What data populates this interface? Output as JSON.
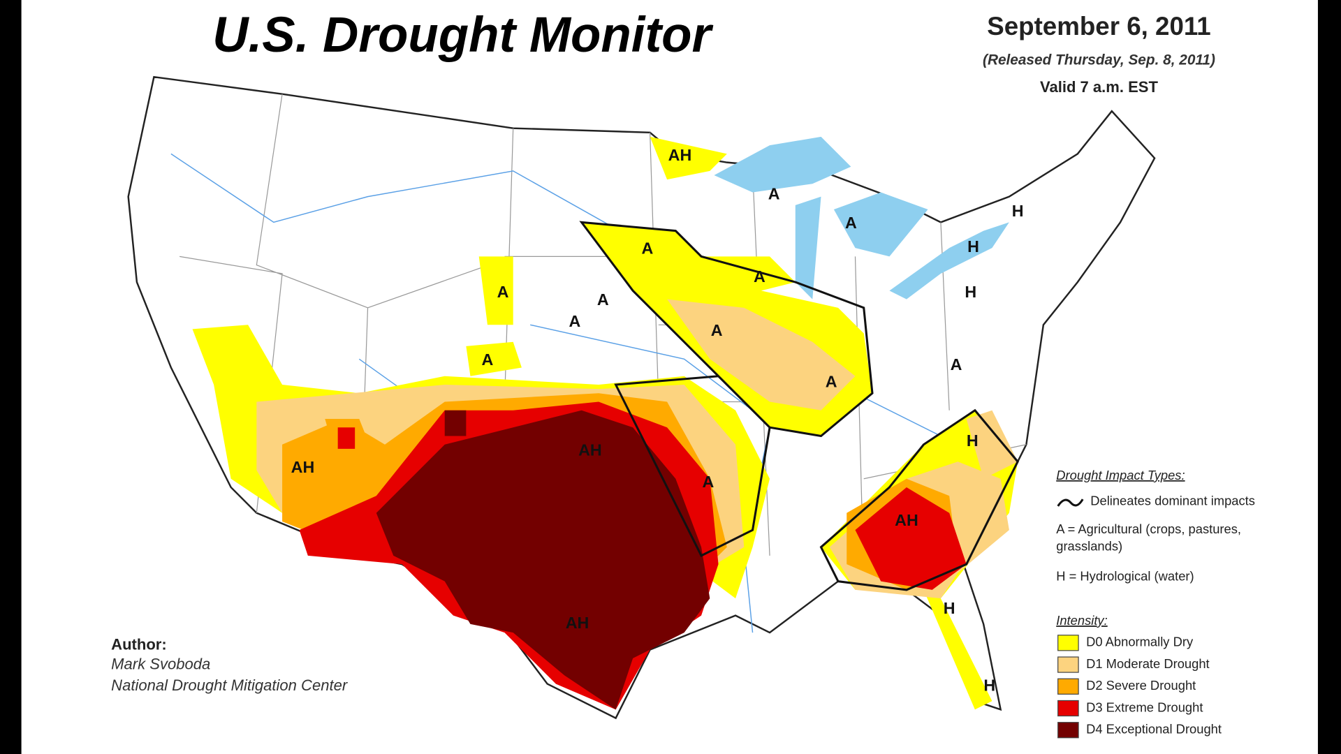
{
  "header": {
    "title": "U.S. Drought Monitor",
    "date": "September 6, 2011",
    "released": "(Released Thursday, Sep. 8, 2011)",
    "valid": "Valid 7 a.m. EST"
  },
  "map_labels": [
    "AH",
    "A",
    "A",
    "H",
    "H",
    "A",
    "A",
    "H",
    "A",
    "A",
    "A",
    "A",
    "A",
    "A",
    "A",
    "AH",
    "H",
    "AH",
    "A",
    "AH",
    "H",
    "AH",
    "H"
  ],
  "legend": {
    "impact_title": "Drought Impact Types:",
    "impact_items": [
      "Delineates dominant impacts",
      "A = Agricultural (crops, pastures,",
      "grasslands)",
      "H = Hydrological (water)"
    ],
    "intensity_title": "Intensity:",
    "intensity_items": [
      {
        "label": "D0 Abnormally Dry",
        "color": "#ffff00"
      },
      {
        "label": "D1 Moderate Drought",
        "color": "#fcd37f"
      },
      {
        "label": "D2 Severe Drought",
        "color": "#ffaa00"
      },
      {
        "label": "D3 Extreme Drought",
        "color": "#e60000"
      },
      {
        "label": "D4 Exceptional Drought",
        "color": "#730000"
      }
    ]
  },
  "author": {
    "heading": "Author:",
    "name": "Mark Svoboda",
    "org": "National Drought Mitigation Center"
  }
}
